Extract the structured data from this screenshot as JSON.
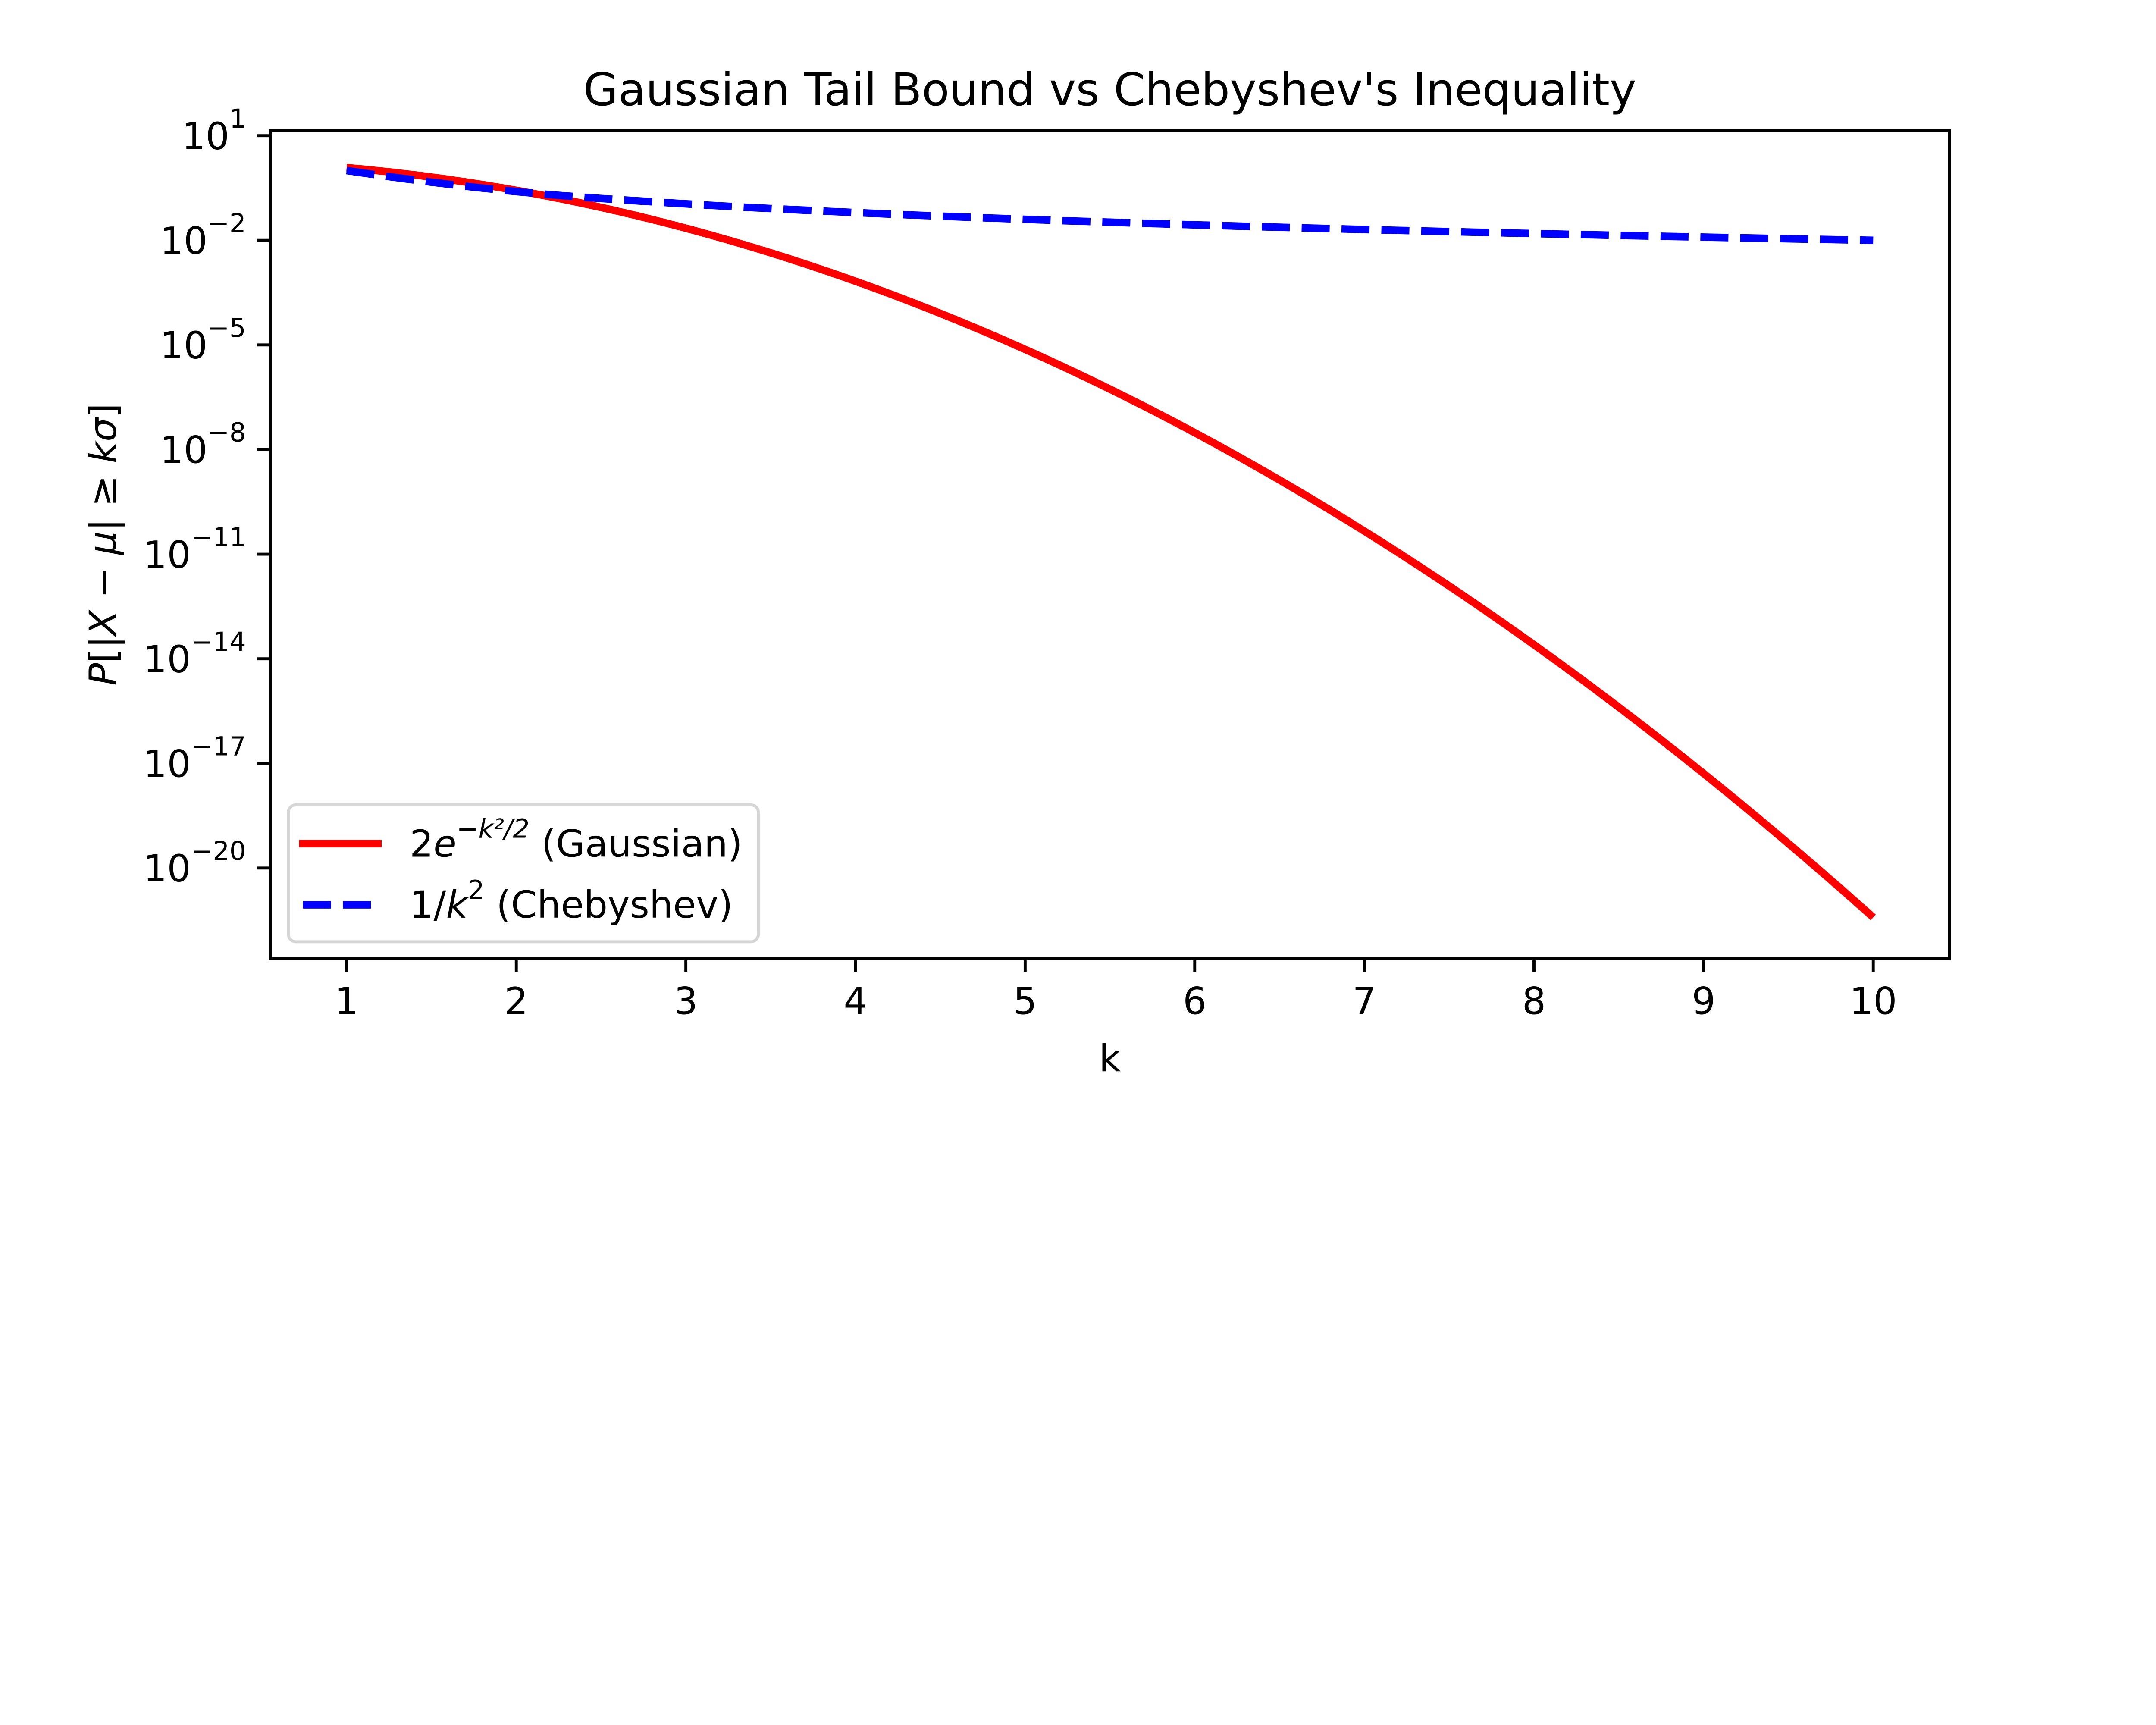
{
  "chart_data": {
    "type": "line",
    "title": "Gaussian Tail Bound vs Chebyshev's Inequality",
    "xlabel": "k",
    "ylabel": {
      "prefix": "P",
      "open": "[|",
      "X": "X",
      "minus": " − ",
      "mu": "μ",
      "close_abs": "| ≥ ",
      "k": "k",
      "sigma": "σ",
      "close": "]"
    },
    "yscale": "log",
    "xlim": [
      0.55,
      10.45
    ],
    "ylim_log10": [
      -22.6,
      1.15
    ],
    "xticks": [
      1,
      2,
      3,
      4,
      5,
      6,
      7,
      8,
      9,
      10
    ],
    "xtick_labels": [
      "1",
      "2",
      "3",
      "4",
      "5",
      "6",
      "7",
      "8",
      "9",
      "10"
    ],
    "yticks_exp": [
      1,
      -2,
      -5,
      -8,
      -11,
      -14,
      -17,
      -20
    ],
    "ytick_labels": [
      {
        "base": "10",
        "exp": "1"
      },
      {
        "base": "10",
        "exp": "−2"
      },
      {
        "base": "10",
        "exp": "−5"
      },
      {
        "base": "10",
        "exp": "−8"
      },
      {
        "base": "10",
        "exp": "−11"
      },
      {
        "base": "10",
        "exp": "−14"
      },
      {
        "base": "10",
        "exp": "−17"
      },
      {
        "base": "10",
        "exp": "−20"
      }
    ],
    "grid": false,
    "legend_position": "lower-left",
    "x": [
      1,
      2,
      3,
      4,
      5,
      6,
      7,
      8,
      9,
      10
    ],
    "series": [
      {
        "name": "2e^{-k^2/2} (Gaussian)",
        "legend": {
          "main": "2",
          "e": "e",
          "exp": "−k²/2",
          "suffix": " (Gaussian)"
        },
        "color": "#ff0000",
        "style": "solid",
        "values": [
          1.2131,
          0.27067,
          0.022218,
          0.00067093,
          7.4533e-06,
          3.0459e-08,
          4.5795e-11,
          2.533e-14,
          5.1546e-18,
          3.8575e-22
        ]
      },
      {
        "name": "1/k^2 (Chebyshev)",
        "legend": {
          "main": "1/",
          "k": "k",
          "exp": "2",
          "suffix": " (Chebyshev)"
        },
        "color": "#0000ff",
        "style": "dashed",
        "values": [
          1,
          0.25,
          0.11111,
          0.0625,
          0.04,
          0.027778,
          0.020408,
          0.015625,
          0.012346,
          0.01
        ]
      }
    ]
  }
}
